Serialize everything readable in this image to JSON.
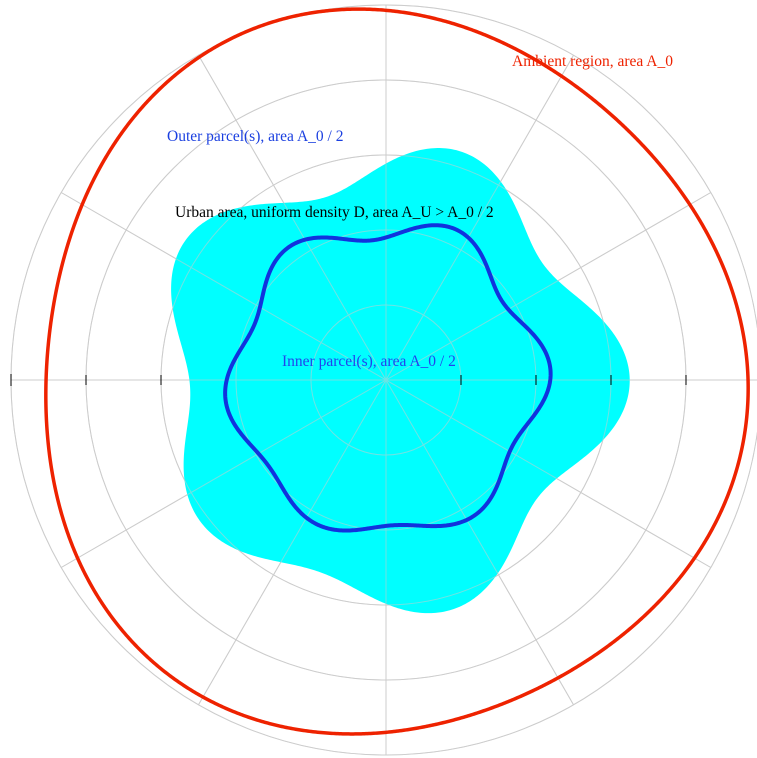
{
  "labels": {
    "ambient": "Ambient region, area A_0",
    "outer": "Outer parcel(s), area A_0 / 2",
    "urban": "Urban area, uniform density D, area A_U > A_0 / 2",
    "inner": "Inner parcel(s), area A_0 / 2"
  },
  "colors": {
    "ambient": "#ee2200",
    "outer_text": "#1a3fe0",
    "urban_fill": "#00ffff",
    "urban_text": "#000000",
    "inner_curve": "#1133dd",
    "inner_text": "#2244ee",
    "grid": "#cccccc",
    "tick": "#000000"
  },
  "polar": {
    "rings": 5,
    "spokes": 12,
    "ticks": 8
  }
}
